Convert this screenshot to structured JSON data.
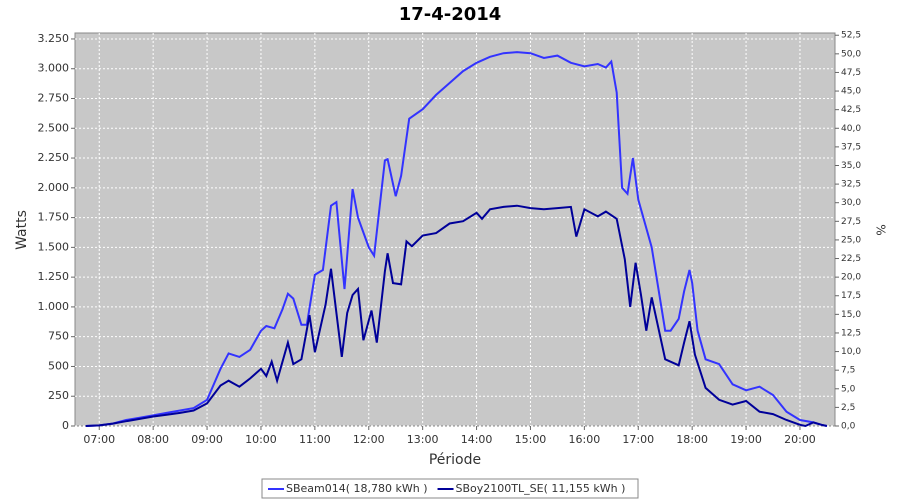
{
  "chart_data": {
    "type": "line",
    "title": "17-4-2014",
    "x_label": "Période",
    "y_label": "Watts",
    "y2_label": "%",
    "xlim": [
      6.55,
      20.65
    ],
    "xticks": [
      {
        "value": 7,
        "label": "07:00"
      },
      {
        "value": 8,
        "label": "08:00"
      },
      {
        "value": 9,
        "label": "09:00"
      },
      {
        "value": 10,
        "label": "10:00"
      },
      {
        "value": 11,
        "label": "11:00"
      },
      {
        "value": 12,
        "label": "12:00"
      },
      {
        "value": 13,
        "label": "13:00"
      },
      {
        "value": 14,
        "label": "14:00"
      },
      {
        "value": 15,
        "label": "15:00"
      },
      {
        "value": 16,
        "label": "16:00"
      },
      {
        "value": 17,
        "label": "17:00"
      },
      {
        "value": 18,
        "label": "18:00"
      },
      {
        "value": 19,
        "label": "19:00"
      },
      {
        "value": 20,
        "label": "20:00"
      }
    ],
    "ylim": [
      0,
      3300
    ],
    "yticks": [
      0,
      250,
      500,
      750,
      {
        "value": 1000,
        "label": "1.000"
      },
      {
        "value": 1250,
        "label": "1.250"
      },
      {
        "value": 1500,
        "label": "1.500"
      },
      {
        "value": 1750,
        "label": "1.750"
      },
      {
        "value": 2000,
        "label": "2.000"
      },
      {
        "value": 2250,
        "label": "2.250"
      },
      {
        "value": 2500,
        "label": "2.500"
      },
      {
        "value": 2750,
        "label": "2.750"
      },
      {
        "value": 3000,
        "label": "3.000"
      },
      {
        "value": 3250,
        "label": "3.250"
      }
    ],
    "y2lim": [
      0,
      52.8
    ],
    "y2ticks": [
      {
        "value": 0,
        "label": "0,0"
      },
      {
        "value": 2.5,
        "label": "2,5"
      },
      {
        "value": 5,
        "label": "5,0"
      },
      {
        "value": 7.5,
        "label": "7,5"
      },
      {
        "value": 10,
        "label": "10,0"
      },
      {
        "value": 12.5,
        "label": "12,5"
      },
      {
        "value": 15,
        "label": "15,0"
      },
      {
        "value": 17.5,
        "label": "17,5"
      },
      {
        "value": 20,
        "label": "20,0"
      },
      {
        "value": 22.5,
        "label": "22,5"
      },
      {
        "value": 25,
        "label": "25,0"
      },
      {
        "value": 27.5,
        "label": "27,5"
      },
      {
        "value": 30,
        "label": "30,0"
      },
      {
        "value": 32.5,
        "label": "32,5"
      },
      {
        "value": 35,
        "label": "35,0"
      },
      {
        "value": 37.5,
        "label": "37,5"
      },
      {
        "value": 40,
        "label": "40,0"
      },
      {
        "value": 42.5,
        "label": "42,5"
      },
      {
        "value": 45,
        "label": "45,0"
      },
      {
        "value": 47.5,
        "label": "47,5"
      },
      {
        "value": 50,
        "label": "50,0"
      },
      {
        "value": 52.5,
        "label": "52,5"
      }
    ],
    "grid": true,
    "series": [
      {
        "name": "SBeam014( 18,780 kWh )",
        "color": "#3333ff",
        "x": [
          6.75,
          7,
          7.25,
          7.5,
          7.75,
          8,
          8.25,
          8.5,
          8.75,
          9,
          9.25,
          9.4,
          9.6,
          9.8,
          10,
          10.1,
          10.25,
          10.4,
          10.5,
          10.6,
          10.75,
          10.85,
          11,
          11.15,
          11.3,
          11.4,
          11.55,
          11.7,
          11.8,
          12,
          12.1,
          12.3,
          12.35,
          12.5,
          12.6,
          12.75,
          13,
          13.25,
          13.5,
          13.75,
          14,
          14.25,
          14.5,
          14.75,
          15,
          15.25,
          15.5,
          15.75,
          16,
          16.25,
          16.4,
          16.5,
          16.6,
          16.7,
          16.8,
          16.9,
          17,
          17.25,
          17.5,
          17.6,
          17.75,
          17.85,
          17.95,
          18,
          18.1,
          18.25,
          18.5,
          18.75,
          19,
          19.25,
          19.5,
          19.75,
          20,
          20.25,
          20.4,
          20.5
        ],
        "values": [
          0,
          5,
          20,
          50,
          70,
          90,
          110,
          130,
          150,
          220,
          480,
          610,
          580,
          640,
          800,
          840,
          820,
          980,
          1110,
          1070,
          850,
          850,
          1270,
          1310,
          1850,
          1880,
          1150,
          1990,
          1750,
          1500,
          1430,
          2230,
          2240,
          1930,
          2100,
          2580,
          2660,
          2780,
          2880,
          2980,
          3050,
          3100,
          3130,
          3140,
          3130,
          3090,
          3110,
          3050,
          3020,
          3040,
          3010,
          3060,
          2800,
          2000,
          1950,
          2250,
          1900,
          1500,
          800,
          800,
          900,
          1130,
          1310,
          1200,
          800,
          560,
          520,
          350,
          300,
          330,
          260,
          120,
          50,
          30,
          10,
          0
        ]
      },
      {
        "name": "SBoy2100TL_SE( 11,155 kWh )",
        "color": "#000099",
        "x": [
          6.75,
          7,
          7.25,
          7.5,
          7.75,
          8,
          8.25,
          8.5,
          8.75,
          9,
          9.25,
          9.4,
          9.6,
          9.8,
          10,
          10.1,
          10.2,
          10.3,
          10.5,
          10.6,
          10.75,
          10.9,
          11,
          11.2,
          11.3,
          11.4,
          11.5,
          11.6,
          11.7,
          11.8,
          11.9,
          12.05,
          12.15,
          12.3,
          12.35,
          12.45,
          12.6,
          12.7,
          12.8,
          13,
          13.25,
          13.5,
          13.75,
          14,
          14.1,
          14.25,
          14.5,
          14.75,
          15,
          15.25,
          15.5,
          15.75,
          15.85,
          16,
          16.25,
          16.4,
          16.6,
          16.75,
          16.85,
          16.95,
          17.05,
          17.15,
          17.25,
          17.5,
          17.75,
          17.85,
          17.95,
          18.05,
          18.25,
          18.5,
          18.75,
          19,
          19.25,
          19.5,
          19.75,
          20,
          20.1,
          20.25,
          20.4,
          20.5
        ],
        "values": [
          0,
          5,
          20,
          40,
          60,
          80,
          95,
          110,
          130,
          190,
          340,
          380,
          330,
          400,
          480,
          420,
          540,
          380,
          700,
          520,
          560,
          930,
          620,
          1020,
          1320,
          950,
          580,
          950,
          1100,
          1150,
          720,
          970,
          700,
          1300,
          1450,
          1200,
          1190,
          1550,
          1510,
          1600,
          1620,
          1700,
          1720,
          1790,
          1740,
          1820,
          1840,
          1850,
          1830,
          1820,
          1830,
          1840,
          1590,
          1820,
          1760,
          1800,
          1740,
          1400,
          1000,
          1370,
          1100,
          800,
          1080,
          560,
          510,
          700,
          880,
          600,
          320,
          220,
          180,
          210,
          120,
          100,
          50,
          10,
          0,
          30,
          10,
          0
        ]
      }
    ]
  }
}
